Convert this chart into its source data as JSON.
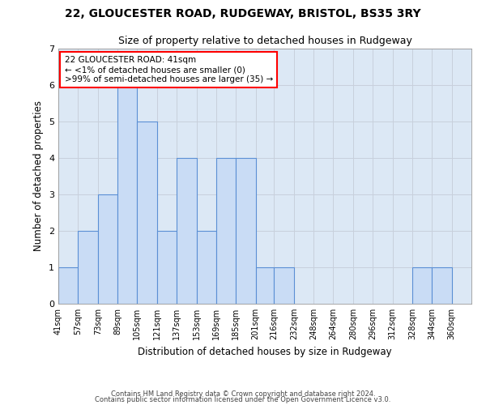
{
  "title_line1": "22, GLOUCESTER ROAD, RUDGEWAY, BRISTOL, BS35 3RY",
  "title_line2": "Size of property relative to detached houses in Rudgeway",
  "xlabel": "Distribution of detached houses by size in Rudgeway",
  "ylabel": "Number of detached properties",
  "bin_labels": [
    "41sqm",
    "57sqm",
    "73sqm",
    "89sqm",
    "105sqm",
    "121sqm",
    "137sqm",
    "153sqm",
    "169sqm",
    "185sqm",
    "201sqm",
    "216sqm",
    "232sqm",
    "248sqm",
    "264sqm",
    "280sqm",
    "296sqm",
    "312sqm",
    "328sqm",
    "344sqm",
    "360sqm"
  ],
  "bin_edges": [
    41,
    57,
    73,
    89,
    105,
    121,
    137,
    153,
    169,
    185,
    201,
    216,
    232,
    248,
    264,
    280,
    296,
    312,
    328,
    344,
    360,
    376
  ],
  "bar_heights": [
    1,
    2,
    3,
    6,
    5,
    2,
    4,
    2,
    4,
    4,
    1,
    1,
    0,
    0,
    0,
    0,
    0,
    0,
    1,
    1,
    0
  ],
  "bar_color": "#c9dcf5",
  "bar_edge_color": "#5b8fd4",
  "ylim": [
    0,
    7
  ],
  "yticks": [
    0,
    1,
    2,
    3,
    4,
    5,
    6,
    7
  ],
  "annotation_box_text": "22 GLOUCESTER ROAD: 41sqm\n← <1% of detached houses are smaller (0)\n>99% of semi-detached houses are larger (35) →",
  "footer_line1": "Contains HM Land Registry data © Crown copyright and database right 2024.",
  "footer_line2": "Contains public sector information licensed under the Open Government Licence v3.0.",
  "grid_color": "#c8d0dc",
  "bg_color": "#dce8f5",
  "fig_width": 6.0,
  "fig_height": 5.0,
  "dpi": 100
}
